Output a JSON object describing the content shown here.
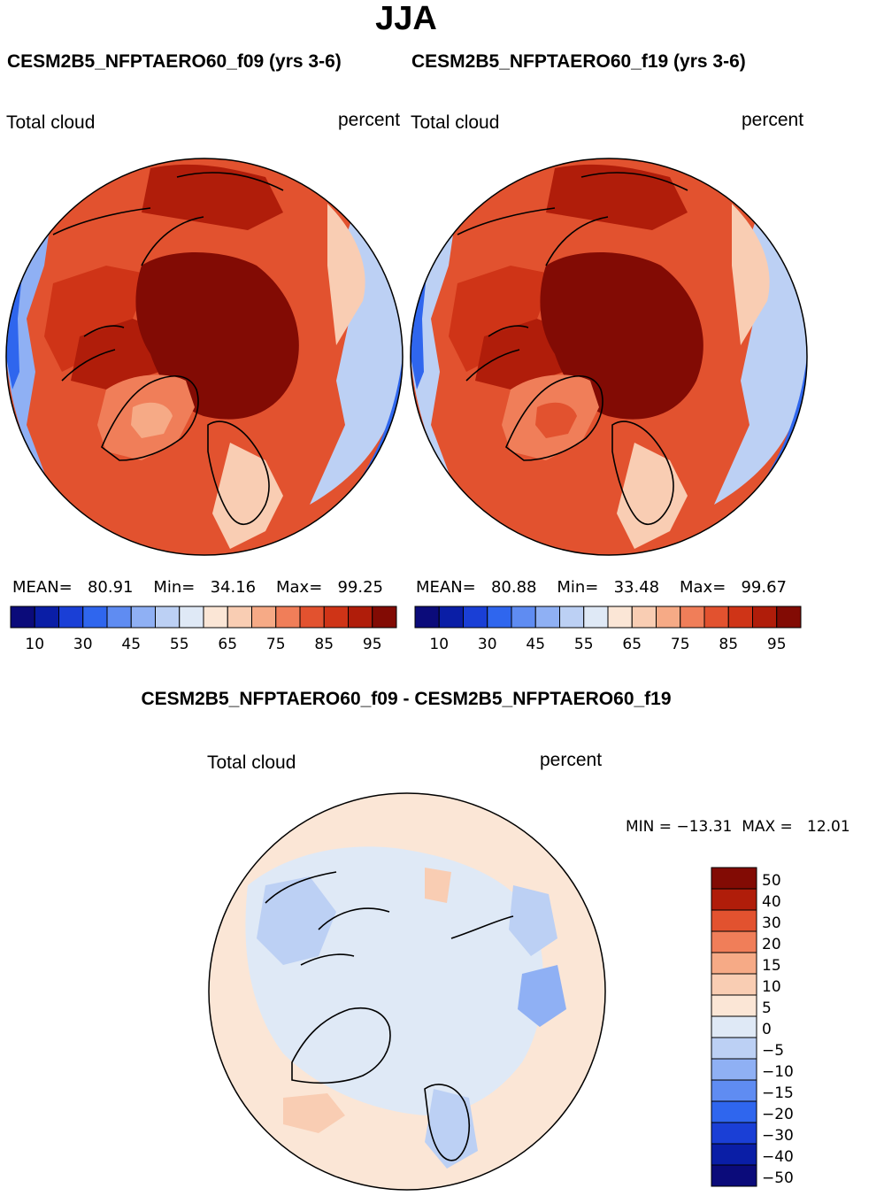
{
  "page": {
    "season": "JJA"
  },
  "panels": [
    {
      "title": "CESM2B5_NFPTAERO60_f09 (yrs 3-6)",
      "variable": "Total cloud",
      "units": "percent",
      "stats": {
        "mean_label": "MEAN=",
        "mean": "80.91",
        "min_label": "Min=",
        "min": "34.16",
        "max_label": "Max=",
        "max": "99.25"
      }
    },
    {
      "title": "CESM2B5_NFPTAERO60_f19 (yrs 3-6)",
      "variable": "Total cloud",
      "units": "percent",
      "stats": {
        "mean_label": "MEAN=",
        "mean": "80.88",
        "min_label": "Min=",
        "min": "33.48",
        "max_label": "Max=",
        "max": "99.67"
      }
    }
  ],
  "diff": {
    "title": "CESM2B5_NFPTAERO60_f09 - CESM2B5_NFPTAERO60_f19",
    "variable": "Total cloud",
    "units": "percent",
    "min_label": "MIN =",
    "min": "−13.31",
    "max_label": "MAX =",
    "max": "12.01"
  },
  "chart_data": [
    {
      "type": "heatmap",
      "projection": "north polar stereographic",
      "title": "CESM2B5_NFPTAERO60_f09 (yrs 3-6)",
      "variable": "Total cloud",
      "units": "percent",
      "mean": 80.91,
      "min": 34.16,
      "max": 99.25,
      "colorbar_levels": [
        5,
        10,
        20,
        30,
        40,
        45,
        50,
        55,
        60,
        65,
        70,
        75,
        80,
        85,
        90,
        95
      ],
      "colorbar_tick_labels": [
        "10",
        "30",
        "45",
        "55",
        "65",
        "75",
        "85",
        "95"
      ],
      "colors": [
        "#0b0b7a",
        "#0a1ea6",
        "#1a3fd6",
        "#2f66ee",
        "#5f8cf2",
        "#8fb0f4",
        "#bcd0f4",
        "#dfe9f6",
        "#fbe6d6",
        "#f9cdb3",
        "#f6aa86",
        "#f07e59",
        "#e2522f",
        "#cf3417",
        "#b01d0a",
        "#820b04"
      ]
    },
    {
      "type": "heatmap",
      "projection": "north polar stereographic",
      "title": "CESM2B5_NFPTAERO60_f19 (yrs 3-6)",
      "variable": "Total cloud",
      "units": "percent",
      "mean": 80.88,
      "min": 33.48,
      "max": 99.67,
      "colorbar_levels": [
        5,
        10,
        20,
        30,
        40,
        45,
        50,
        55,
        60,
        65,
        70,
        75,
        80,
        85,
        90,
        95
      ],
      "colorbar_tick_labels": [
        "10",
        "30",
        "45",
        "55",
        "65",
        "75",
        "85",
        "95"
      ],
      "colors": [
        "#0b0b7a",
        "#0a1ea6",
        "#1a3fd6",
        "#2f66ee",
        "#5f8cf2",
        "#8fb0f4",
        "#bcd0f4",
        "#dfe9f6",
        "#fbe6d6",
        "#f9cdb3",
        "#f6aa86",
        "#f07e59",
        "#e2522f",
        "#cf3417",
        "#b01d0a",
        "#820b04"
      ]
    },
    {
      "type": "heatmap",
      "projection": "north polar stereographic",
      "title": "CESM2B5_NFPTAERO60_f09 - CESM2B5_NFPTAERO60_f19",
      "variable": "Total cloud",
      "units": "percent",
      "min": -13.31,
      "max": 12.01,
      "colorbar_tick_labels": [
        "50",
        "40",
        "30",
        "20",
        "15",
        "10",
        "5",
        "0",
        "−5",
        "−10",
        "−15",
        "−20",
        "−30",
        "−40",
        "−50"
      ],
      "colors": [
        "#820b04",
        "#b01d0a",
        "#e2522f",
        "#f07e59",
        "#f6aa86",
        "#f9cdb3",
        "#fbe6d6",
        "#dfe9f6",
        "#bcd0f4",
        "#8fb0f4",
        "#5f8cf2",
        "#2f66ee",
        "#1a3fd6",
        "#0a1ea6",
        "#0b0b7a"
      ]
    }
  ]
}
